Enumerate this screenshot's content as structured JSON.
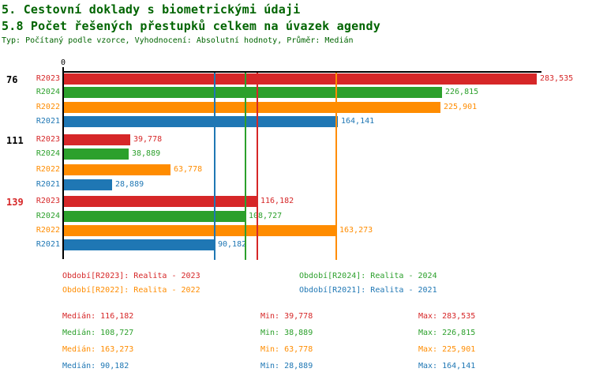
{
  "header": {
    "title1": "5. Cestovní doklady s biometrickými údaji",
    "title2": "5.8 Počet řešených přestupků celkem na úvazek agendy",
    "subtitle": "Typ: Počítaný podle vzorce, Vyhodnocení: Absolutní hodnoty, Průměr: Medián",
    "title_color": "#006400"
  },
  "chart_data": {
    "type": "bar",
    "orientation": "horizontal",
    "grid": false,
    "value_axis": {
      "zero_label": "0",
      "min": 0,
      "max": 290000
    },
    "series": [
      {
        "id": "R2023",
        "label": "R2023",
        "color": "#d62728",
        "median": 116182,
        "median_display": "116,182"
      },
      {
        "id": "R2024",
        "label": "R2024",
        "color": "#2ca02c",
        "median": 108727,
        "median_display": "108,727"
      },
      {
        "id": "R2022",
        "label": "R2022",
        "color": "#ff8c00",
        "median": 163273,
        "median_display": "163,273"
      },
      {
        "id": "R2021",
        "label": "R2021",
        "color": "#1f77b4",
        "median": 90182,
        "median_display": "90,182"
      }
    ],
    "groups": [
      {
        "label": "76",
        "label_color": "#000000",
        "values": [
          283535,
          226815,
          225901,
          164141
        ],
        "display": [
          "283,535",
          "226,815",
          "225,901",
          "164,141"
        ]
      },
      {
        "label": "111",
        "label_color": "#000000",
        "values": [
          39778,
          38889,
          63778,
          28889
        ],
        "display": [
          "39,778",
          "38,889",
          "63,778",
          "28,889"
        ]
      },
      {
        "label": "139",
        "label_color": "#d62728",
        "values": [
          116182,
          108727,
          163273,
          90182
        ],
        "display": [
          "116,182",
          "108,727",
          "163,273",
          "90,182"
        ]
      }
    ]
  },
  "legend": {
    "items": [
      {
        "id": "R2023",
        "text": "Období[R2023]: Realita - 2023",
        "color": "#d62728"
      },
      {
        "id": "R2024",
        "text": "Období[R2024]: Realita - 2024",
        "color": "#2ca02c"
      },
      {
        "id": "R2022",
        "text": "Období[R2022]: Realita - 2022",
        "color": "#ff8c00"
      },
      {
        "id": "R2021",
        "text": "Období[R2021]: Realita - 2021",
        "color": "#1f77b4"
      }
    ]
  },
  "stats": {
    "rows": [
      {
        "id": "R2023",
        "color": "#d62728",
        "cells": [
          "Medián: 116,182",
          "Min: 39,778",
          "Max: 283,535"
        ]
      },
      {
        "id": "R2024",
        "color": "#2ca02c",
        "cells": [
          "Medián: 108,727",
          "Min: 38,889",
          "Max: 226,815"
        ]
      },
      {
        "id": "R2022",
        "color": "#ff8c00",
        "cells": [
          "Medián: 163,273",
          "Min: 63,778",
          "Max: 225,901"
        ]
      },
      {
        "id": "R2021",
        "color": "#1f77b4",
        "cells": [
          "Medián: 90,182",
          "Min: 28,889",
          "Max: 164,141"
        ]
      }
    ]
  }
}
